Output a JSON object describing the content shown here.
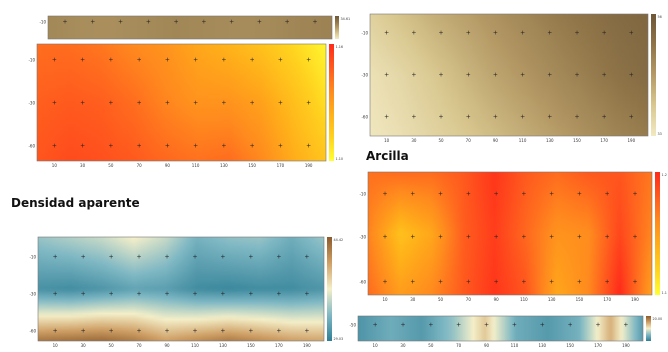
{
  "headings": {
    "left": "Densidad aparente",
    "right": "Arcilla"
  },
  "x_tick_labels": [
    "10",
    "30",
    "50",
    "70",
    "90",
    "110",
    "130",
    "150",
    "170",
    "190"
  ],
  "colors": {
    "warm_scale": [
      "#ffff33",
      "#ffd21f",
      "#ffb01a",
      "#ff8a1e",
      "#ff5a1e",
      "#ff2a1a"
    ],
    "earth_scale": [
      "#f2e9c2",
      "#d9c890",
      "#b59a66",
      "#8f7448",
      "#6e5738"
    ],
    "teal_earth_scale": [
      "#2f7f96",
      "#7fb8c4",
      "#f4efc9",
      "#cfa066",
      "#8c5a2c"
    ]
  },
  "panels": [
    {
      "id": "top-left-strip",
      "colormap": "earth_scale",
      "y_tick_labels": [
        "-10"
      ],
      "colorbar_labels": [
        "34.61"
      ],
      "show_x_ticks": false,
      "field": [
        [
          0.62,
          0.58,
          0.57,
          0.6,
          0.63,
          0.61,
          0.59,
          0.6,
          0.64,
          0.66
        ]
      ]
    },
    {
      "id": "left-warm-map",
      "colormap": "warm_scale",
      "y_tick_labels": [
        "-10",
        "-30",
        "-60"
      ],
      "colorbar_labels": [
        "1.16",
        "1.10"
      ],
      "show_x_ticks": true,
      "field": [
        [
          0.72,
          0.72,
          0.68,
          0.6,
          0.55,
          0.45,
          0.38,
          0.3,
          0.18,
          0.05
        ],
        [
          0.78,
          0.8,
          0.78,
          0.72,
          0.62,
          0.55,
          0.55,
          0.48,
          0.32,
          0.15
        ],
        [
          0.82,
          0.86,
          0.84,
          0.8,
          0.74,
          0.7,
          0.72,
          0.6,
          0.42,
          0.28
        ]
      ]
    },
    {
      "id": "left-teal-map",
      "colormap": "teal_earth_scale",
      "y_tick_labels": [
        "-10",
        "-30",
        "-60"
      ],
      "colorbar_labels": [
        "44.42",
        "29.03"
      ],
      "show_x_ticks": true,
      "field": [
        [
          0.3,
          0.35,
          0.4,
          0.5,
          0.4,
          0.22,
          0.28,
          0.3,
          0.2,
          0.3
        ],
        [
          0.08,
          0.06,
          0.1,
          0.16,
          0.14,
          0.06,
          0.04,
          0.06,
          0.06,
          0.1
        ],
        [
          0.88,
          0.9,
          0.92,
          0.86,
          0.74,
          0.8,
          0.86,
          0.8,
          0.74,
          0.72
        ]
      ]
    },
    {
      "id": "right-earth-map",
      "colormap": "earth_scale",
      "y_tick_labels": [
        "-10",
        "-30",
        "-60"
      ],
      "colorbar_labels": [
        "56",
        "33"
      ],
      "show_x_ticks": true,
      "field": [
        [
          0.18,
          0.28,
          0.38,
          0.46,
          0.54,
          0.62,
          0.7,
          0.76,
          0.82,
          0.86
        ],
        [
          0.06,
          0.14,
          0.24,
          0.34,
          0.44,
          0.52,
          0.6,
          0.68,
          0.76,
          0.82
        ],
        [
          0.02,
          0.08,
          0.16,
          0.24,
          0.32,
          0.4,
          0.48,
          0.56,
          0.64,
          0.7
        ]
      ]
    },
    {
      "id": "right-warm-map",
      "colormap": "warm_scale",
      "y_tick_labels": [
        "-10",
        "-30",
        "-60"
      ],
      "colorbar_labels": [
        "1.2",
        "1.1"
      ],
      "show_x_ticks": true,
      "field": [
        [
          0.7,
          0.72,
          0.72,
          0.8,
          0.95,
          0.8,
          0.72,
          0.8,
          0.82,
          0.68
        ],
        [
          0.62,
          0.3,
          0.45,
          0.78,
          0.92,
          0.74,
          0.55,
          0.58,
          0.88,
          0.62
        ],
        [
          0.72,
          0.5,
          0.6,
          0.8,
          0.95,
          0.82,
          0.45,
          0.6,
          1.0,
          0.5
        ]
      ]
    },
    {
      "id": "bottom-right-strip",
      "colormap": "teal_earth_scale",
      "y_tick_labels": [
        "-50"
      ],
      "colorbar_labels": [
        "20.00"
      ],
      "show_x_ticks": true,
      "field": [
        [
          0.1,
          0.2,
          0.12,
          0.3,
          0.62,
          0.2,
          0.12,
          0.22,
          0.7,
          0.14
        ]
      ]
    }
  ]
}
